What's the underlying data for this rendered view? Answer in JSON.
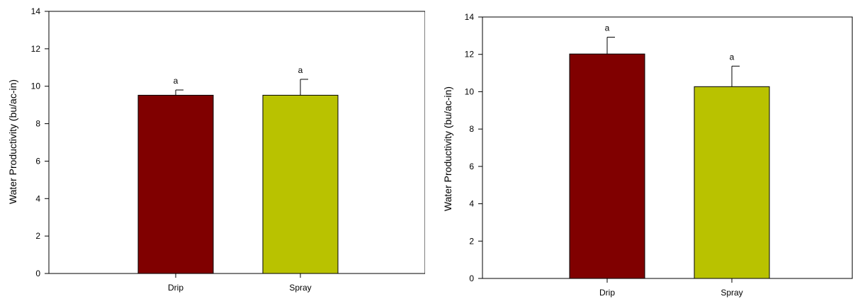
{
  "colors": {
    "drip": "#800000",
    "spray": "#b9c200"
  },
  "chart_data": [
    {
      "type": "bar",
      "categories": [
        "Drip",
        "Spray"
      ],
      "values": [
        9.52,
        9.52
      ],
      "error_upper": [
        0.28,
        0.85
      ],
      "sig_labels": [
        "a",
        "a"
      ],
      "title": "",
      "xlabel": "",
      "ylabel": "Water Productivity (bu/ac-in)",
      "ylim": [
        0,
        14
      ],
      "yticks": [
        "0",
        "2",
        "4",
        "6",
        "8",
        "10",
        "12",
        "14"
      ],
      "grid": false
    },
    {
      "type": "bar",
      "categories": [
        "Drip",
        "Spray"
      ],
      "values": [
        12.02,
        10.27
      ],
      "error_upper": [
        0.9,
        1.1
      ],
      "sig_labels": [
        "a",
        "a"
      ],
      "title": "",
      "xlabel": "",
      "ylabel": "Water Productivity (bu/ac-in)",
      "ylim": [
        0,
        14
      ],
      "yticks": [
        "0",
        "2",
        "4",
        "6",
        "8",
        "10",
        "12",
        "14"
      ],
      "grid": false
    }
  ]
}
